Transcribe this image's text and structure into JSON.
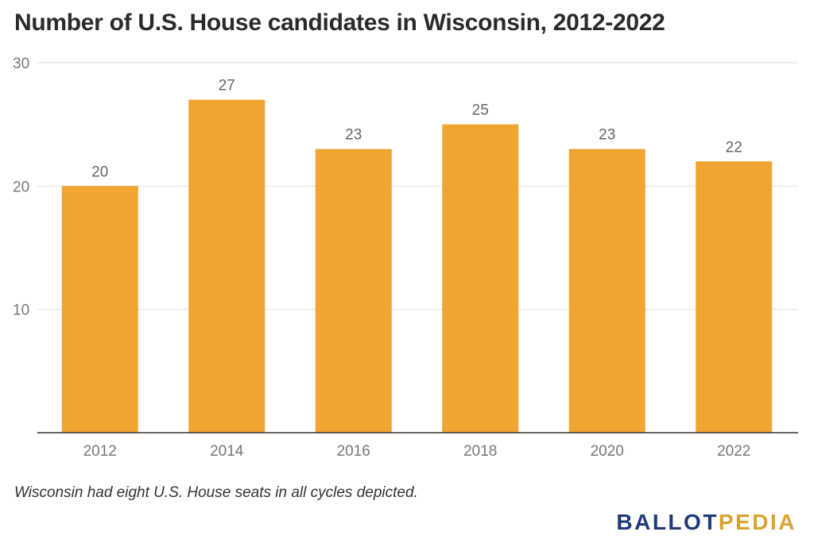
{
  "chart_data": {
    "type": "bar",
    "title": "Number of U.S. House candidates in Wisconsin, 2012-2022",
    "categories": [
      "2012",
      "2014",
      "2016",
      "2018",
      "2020",
      "2022"
    ],
    "values": [
      20,
      27,
      23,
      25,
      23,
      22
    ],
    "xlabel": "",
    "ylabel": "",
    "ylim": [
      0,
      30
    ],
    "yticks": [
      10,
      20,
      30
    ],
    "grid": true,
    "data_labels": true,
    "bar_color": "#f0a431"
  },
  "footer": {
    "note": "Wisconsin had eight U.S. House seats in all cycles depicted.",
    "logo_part1": "BALLOT",
    "logo_part2": "PEDIA"
  },
  "colors": {
    "grid": "#e0e0e0",
    "axis": "#333333",
    "tick_text": "#777777",
    "label_text": "#666666",
    "logo_blue": "#1f3a7a",
    "logo_gold": "#d9a431"
  }
}
